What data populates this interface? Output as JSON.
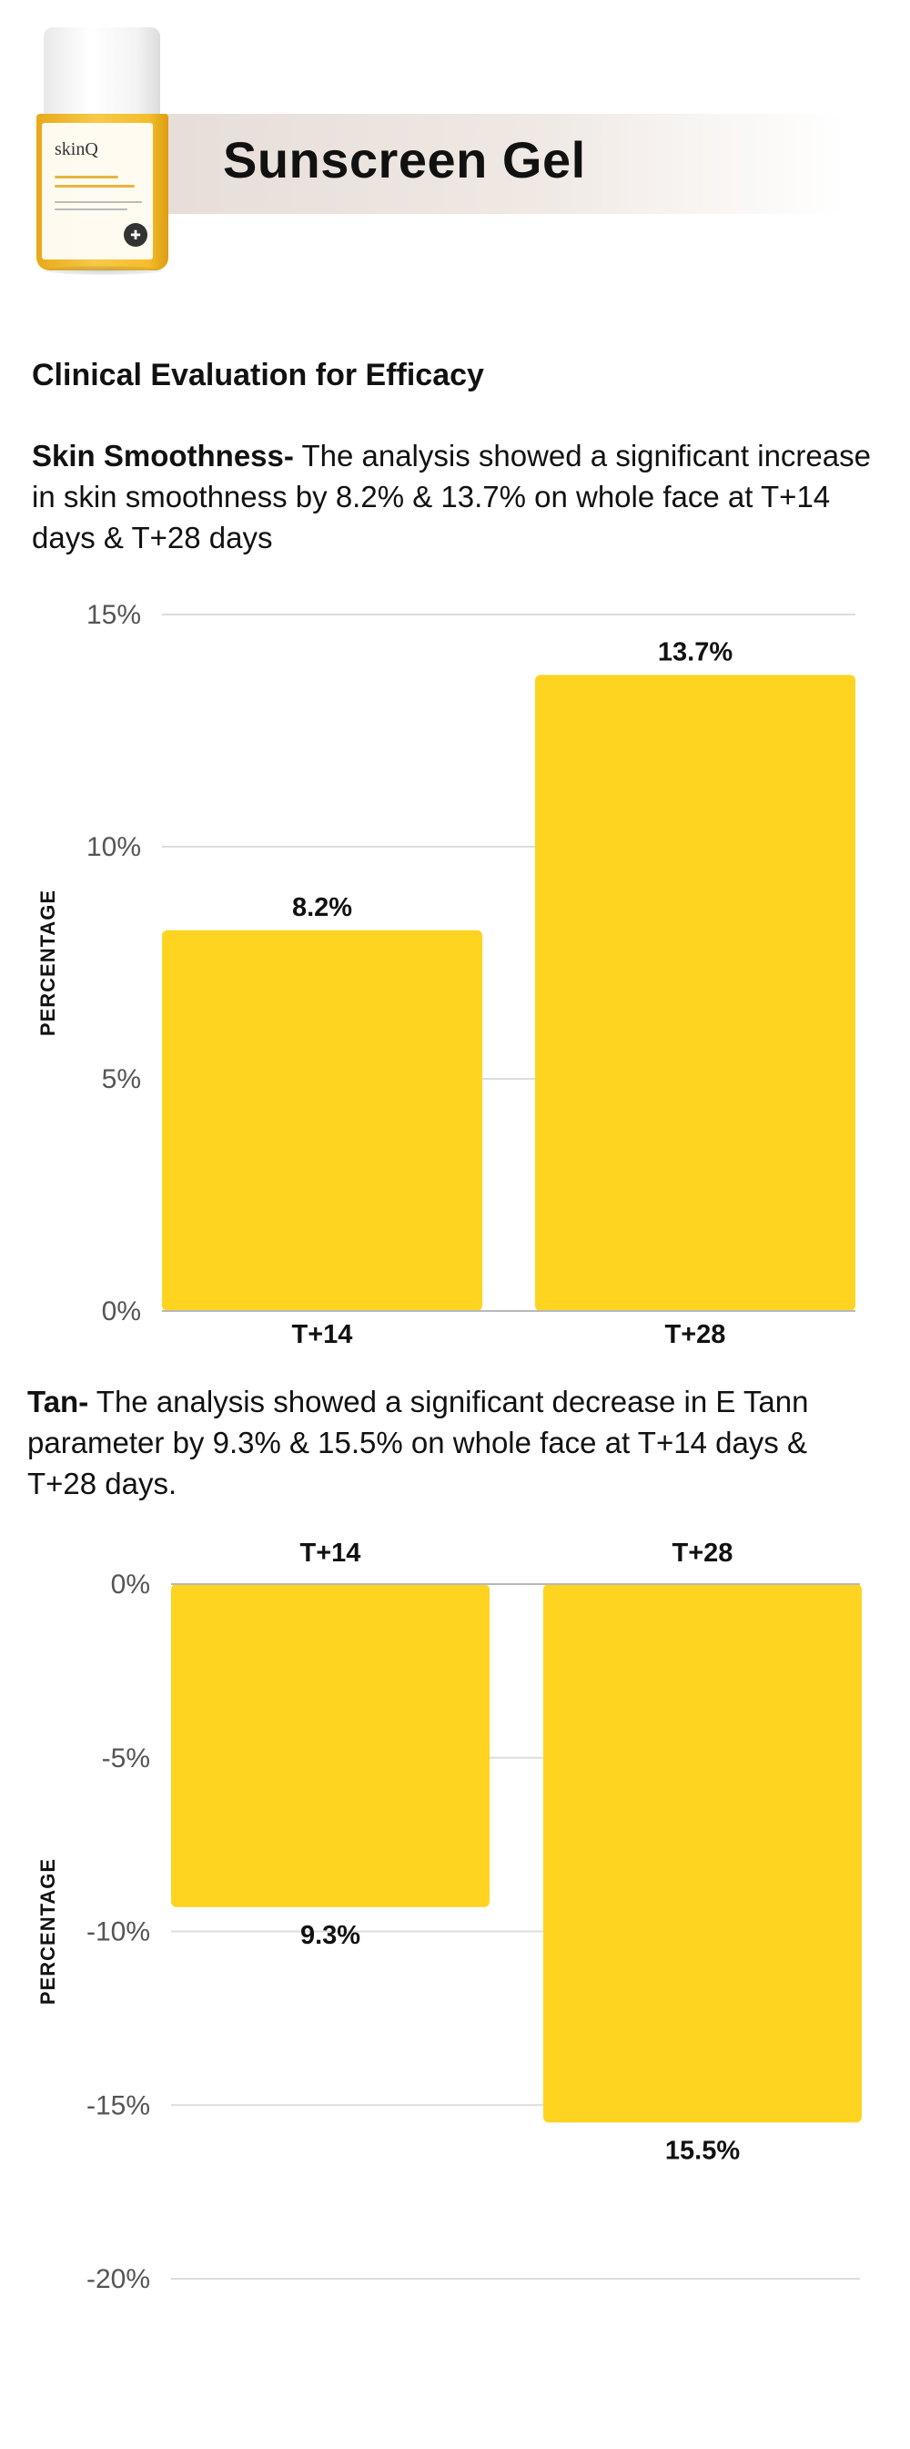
{
  "header": {
    "product_title": "Sunscreen Gel",
    "brand": "skinQ"
  },
  "section_title": "Clinical Evaluation for Efficacy",
  "smoothness": {
    "lead": "Skin Smoothness-",
    "text": " The analysis showed a significant increase in skin smoothness by 8.2% & 13.7% on whole face at T+14 days & T+28 days"
  },
  "tan": {
    "lead": "Tan-",
    "text": " The analysis showed a significant decrease in E Tann parameter by 9.3% & 15.5% on whole face at T+14 days & T+28 days."
  },
  "chart_data": [
    {
      "type": "bar",
      "categories": [
        "T+14",
        "T+28"
      ],
      "values": [
        8.2,
        13.7
      ],
      "value_labels": [
        "8.2%",
        "13.7%"
      ],
      "ylabel": "PERCENTAGE",
      "ylim": [
        0,
        15
      ],
      "yticks": [
        0,
        5,
        10,
        15
      ],
      "ytick_labels": [
        "0%",
        "5%",
        "10%",
        "15%"
      ],
      "bar_color": "#fed421",
      "grid": true,
      "category_labels_position": "bottom"
    },
    {
      "type": "bar",
      "categories": [
        "T+14",
        "T+28"
      ],
      "values": [
        -9.3,
        -15.5
      ],
      "value_labels": [
        "9.3%",
        "15.5%"
      ],
      "ylabel": "PERCENTAGE",
      "ylim": [
        -20,
        0
      ],
      "yticks": [
        0,
        -5,
        -10,
        -15,
        -20
      ],
      "ytick_labels": [
        "0%",
        "-5%",
        "-10%",
        "-15%",
        "-20%"
      ],
      "bar_color": "#fed421",
      "grid": true,
      "category_labels_position": "top"
    }
  ]
}
